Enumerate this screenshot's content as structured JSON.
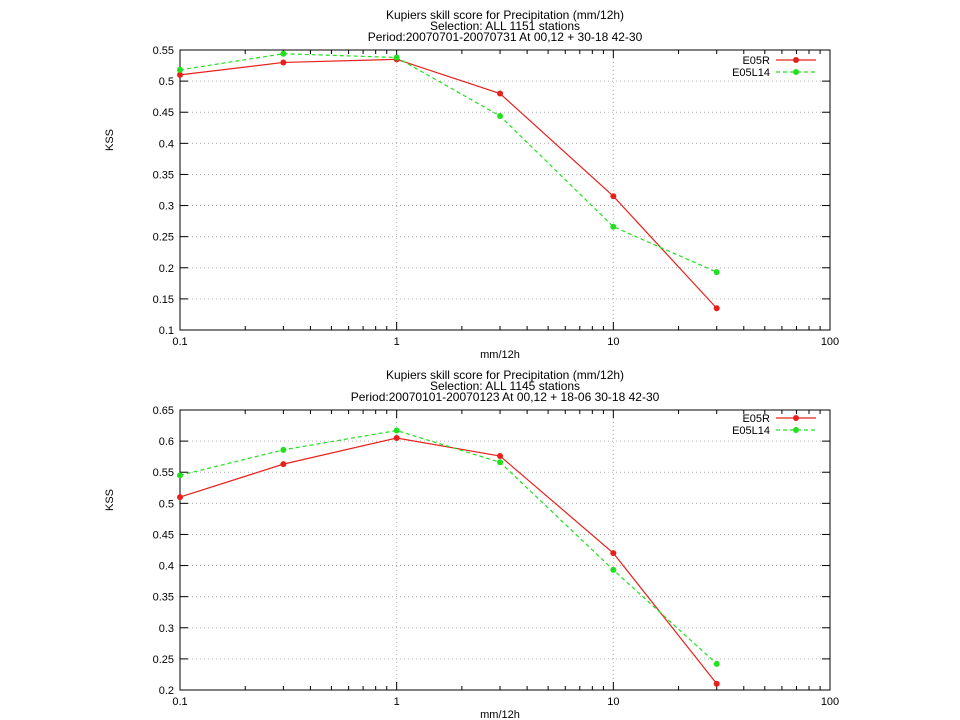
{
  "chart_data": [
    {
      "type": "line",
      "title_lines": [
        "Kupiers skill score  for Precipitation (mm/12h)",
        "Selection: ALL   1151 stations",
        "Period:20070701-20070731  At 00,12 + 30-18 42-30"
      ],
      "xlabel": "mm/12h",
      "ylabel": "KSS",
      "x_scale": "log",
      "xlim": [
        0.1,
        100
      ],
      "ylim": [
        0.1,
        0.55
      ],
      "x_ticks": [
        0.1,
        1,
        10,
        100
      ],
      "x_tick_labels": [
        "0.1",
        "1",
        "10",
        "100"
      ],
      "y_ticks": [
        0.1,
        0.15,
        0.2,
        0.25,
        0.3,
        0.35,
        0.4,
        0.45,
        0.5,
        0.55
      ],
      "y_tick_labels": [
        "0.1",
        "0.15",
        "0.2",
        "0.25",
        "0.3",
        "0.35",
        "0.4",
        "0.45",
        "0.5",
        "0.55"
      ],
      "grid": true,
      "legend_position": "top-right",
      "x": [
        0.1,
        0.3,
        1,
        3,
        10,
        30
      ],
      "series": [
        {
          "name": "E05R",
          "color": "#e8201c",
          "dash": "solid",
          "values": [
            0.51,
            0.53,
            0.535,
            0.48,
            0.315,
            0.135
          ]
        },
        {
          "name": "E05L14",
          "color": "#20e020",
          "dash": "dashed",
          "values": [
            0.518,
            0.544,
            0.538,
            0.444,
            0.266,
            0.193
          ]
        }
      ]
    },
    {
      "type": "line",
      "title_lines": [
        "Kupiers skill score  for Precipitation (mm/12h)",
        "Selection: ALL   1145 stations",
        "Period:20070101-20070123  At 00,12 + 18-06 30-18 42-30"
      ],
      "xlabel": "mm/12h",
      "ylabel": "KSS",
      "x_scale": "log",
      "xlim": [
        0.1,
        100
      ],
      "ylim": [
        0.2,
        0.65
      ],
      "x_ticks": [
        0.1,
        1,
        10,
        100
      ],
      "x_tick_labels": [
        "0.1",
        "1",
        "10",
        "100"
      ],
      "y_ticks": [
        0.2,
        0.25,
        0.3,
        0.35,
        0.4,
        0.45,
        0.5,
        0.55,
        0.6,
        0.65
      ],
      "y_tick_labels": [
        "0.2",
        "0.25",
        "0.3",
        "0.35",
        "0.4",
        "0.45",
        "0.5",
        "0.55",
        "0.6",
        "0.65"
      ],
      "grid": true,
      "legend_position": "top-right",
      "x": [
        0.1,
        0.3,
        1,
        3,
        10,
        30
      ],
      "series": [
        {
          "name": "E05R",
          "color": "#e8201c",
          "dash": "solid",
          "values": [
            0.51,
            0.563,
            0.605,
            0.576,
            0.42,
            0.21
          ]
        },
        {
          "name": "E05L14",
          "color": "#20e020",
          "dash": "dashed",
          "values": [
            0.545,
            0.586,
            0.617,
            0.566,
            0.393,
            0.242
          ]
        }
      ]
    }
  ]
}
